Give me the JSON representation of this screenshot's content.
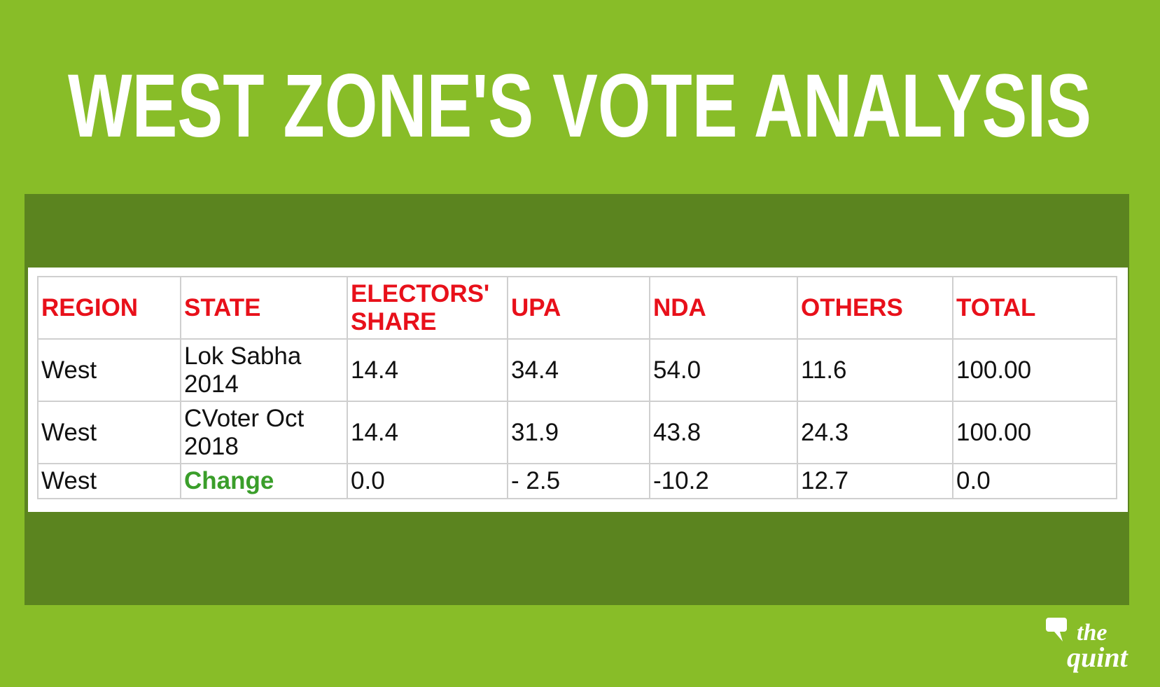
{
  "header": {
    "title": "WEST ZONE'S VOTE ANALYSIS"
  },
  "table": {
    "columns": [
      "REGION",
      "STATE",
      "ELECTORS' SHARE",
      "UPA",
      "NDA",
      "OTHERS",
      "TOTAL"
    ],
    "rows": [
      [
        "West",
        "Lok Sabha 2014",
        "14.4",
        "34.4",
        "54.0",
        "11.6",
        "100.00"
      ],
      [
        "West",
        "CVoter Oct 2018",
        "14.4",
        "31.9",
        "43.8",
        "24.3",
        "100.00"
      ],
      [
        "West",
        "Change",
        "0.0",
        "- 2.5",
        "-10.2",
        "12.7",
        "0.0"
      ]
    ]
  },
  "logo": {
    "line1": "the",
    "line2": "quint"
  }
}
